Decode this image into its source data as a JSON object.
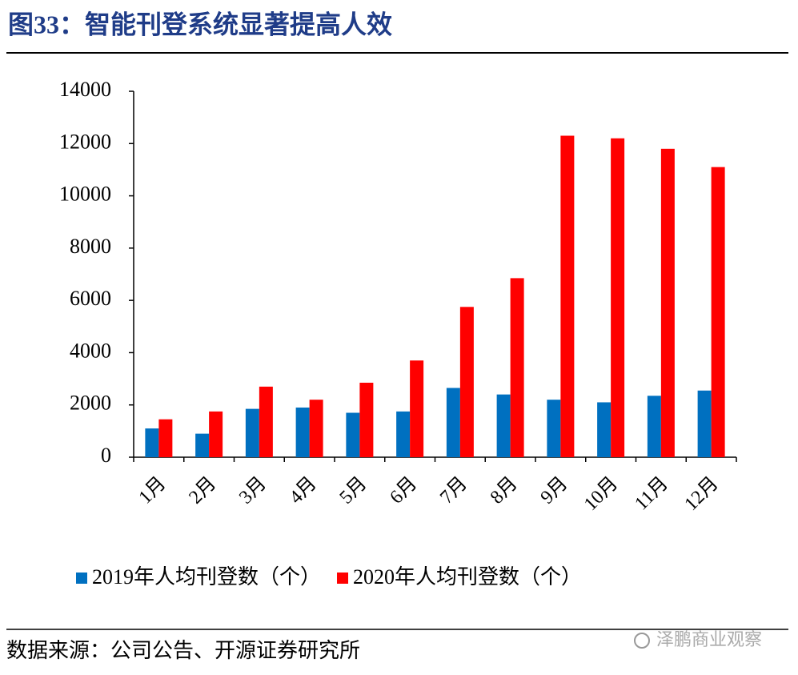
{
  "chart_data": {
    "type": "bar",
    "title": "图33：智能刊登系统显著提高人效",
    "categories": [
      "1月",
      "2月",
      "3月",
      "4月",
      "5月",
      "6月",
      "7月",
      "8月",
      "9月",
      "10月",
      "11月",
      "12月"
    ],
    "series": [
      {
        "name": "2019年人均刊登数（个）",
        "color": "#0070c0",
        "values": [
          1100,
          900,
          1850,
          1900,
          1700,
          1750,
          2650,
          2400,
          2200,
          2100,
          2350,
          2550
        ]
      },
      {
        "name": "2020年人均刊登数（个）",
        "color": "#ff0000",
        "values": [
          1450,
          1750,
          2700,
          2200,
          2850,
          3700,
          5750,
          6850,
          12300,
          12200,
          11800,
          11100
        ]
      }
    ],
    "ylim": [
      0,
      14000
    ],
    "yticks": [
      0,
      2000,
      4000,
      6000,
      8000,
      10000,
      12000,
      14000
    ],
    "grid": false
  },
  "source": "数据来源：公司公告、开源证券研究所",
  "watermark": "泽鹏商业观察"
}
